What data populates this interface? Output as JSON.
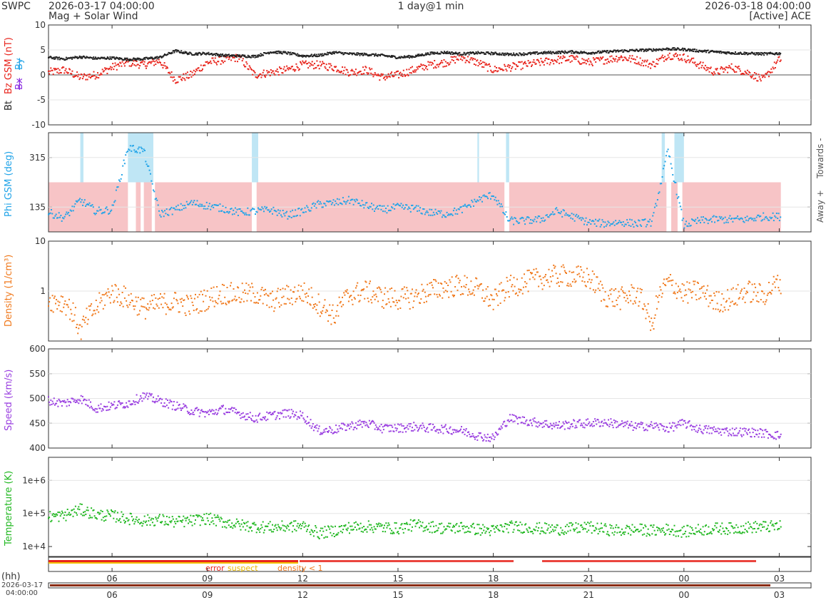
{
  "header": {
    "org": "SWPC",
    "start_time": "2026-03-17 04:00:00",
    "product": "Mag + Solar Wind",
    "span": "1 day@1 min",
    "end_time": "2026-03-18 04:00:00",
    "source": "[Active] ACE"
  },
  "colors": {
    "bt": "#222222",
    "bz": "#e8241c",
    "bx": "#8a2be2",
    "by": "#22a4e8",
    "phi": "#22a4e8",
    "density": "#f07a1e",
    "speed": "#9a3fe0",
    "temperature": "#22b822",
    "away_band": "#f7c4c6",
    "towards_band": "#bfe6f5",
    "flag_error": "#e8241c",
    "flag_suspect": "#f2c200",
    "flag_density": "#f07a1e"
  },
  "chart_data": [
    {
      "type": "scatter",
      "title": "Bz GSM / Bt",
      "ylabel_parts": [
        "Bt",
        "Bz GSM (nT)",
        "Bx",
        "By"
      ],
      "ylim": [
        -10,
        10
      ],
      "yticks": [
        "10",
        "5",
        "0",
        "-5",
        "-10"
      ],
      "x_hours": [
        4,
        28
      ],
      "series": [
        {
          "name": "Bt",
          "key": "bt",
          "x": [
            4.0,
            4.5,
            5.0,
            5.5,
            6.0,
            6.5,
            7.0,
            7.5,
            8.0,
            8.5,
            9.0,
            9.5,
            10.0,
            10.5,
            11.0,
            11.5,
            12.0,
            12.5,
            13.0,
            13.5,
            14.0,
            14.5,
            15.0,
            15.5,
            16.0,
            16.5,
            17.0,
            17.5,
            18.0,
            18.5,
            19.0,
            19.5,
            20.0,
            20.5,
            21.0,
            21.5,
            22.0,
            22.5,
            23.0,
            23.5,
            24.0,
            24.5,
            25.0,
            25.5,
            26.0,
            26.5,
            27.0
          ],
          "values": [
            3.5,
            3.2,
            3.6,
            3.3,
            3.4,
            3.1,
            3.2,
            3.5,
            4.8,
            4.2,
            4.3,
            3.9,
            3.8,
            3.7,
            4.6,
            4.4,
            3.8,
            3.9,
            4.5,
            4.2,
            4.1,
            3.9,
            3.5,
            3.7,
            4.3,
            4.5,
            4.2,
            4.4,
            4.3,
            4.1,
            4.2,
            4.4,
            4.5,
            4.6,
            4.4,
            4.6,
            4.8,
            4.9,
            5.0,
            5.2,
            5.1,
            4.8,
            4.6,
            4.4,
            4.3,
            4.2,
            4.3
          ]
        },
        {
          "name": "Bz GSM",
          "key": "bz",
          "x": [
            4.0,
            4.5,
            5.0,
            5.5,
            6.0,
            6.5,
            7.0,
            7.5,
            8.0,
            8.5,
            9.0,
            9.5,
            10.0,
            10.5,
            11.0,
            11.5,
            12.0,
            12.5,
            13.0,
            13.5,
            14.0,
            14.5,
            15.0,
            15.5,
            16.0,
            16.5,
            17.0,
            17.5,
            18.0,
            18.5,
            19.0,
            19.5,
            20.0,
            20.5,
            21.0,
            21.5,
            22.0,
            22.5,
            23.0,
            23.5,
            24.0,
            24.5,
            25.0,
            25.5,
            26.0,
            26.5,
            27.0
          ],
          "values": [
            0.5,
            1.0,
            -0.5,
            0.0,
            1.5,
            2.5,
            2.0,
            2.8,
            -1.0,
            0.0,
            2.5,
            3.0,
            3.5,
            0.0,
            0.5,
            1.0,
            2.0,
            2.0,
            1.5,
            0.5,
            1.0,
            -0.5,
            0.0,
            1.0,
            2.0,
            2.5,
            3.5,
            2.5,
            1.0,
            1.5,
            2.0,
            2.5,
            3.0,
            3.2,
            2.5,
            3.0,
            3.5,
            3.0,
            2.0,
            4.0,
            3.5,
            2.0,
            0.5,
            1.5,
            0.5,
            -1.0,
            3.0
          ]
        }
      ]
    },
    {
      "type": "scatter",
      "title": "Phi GSM",
      "ylabel": "Phi GSM (deg)",
      "ylim": [
        45,
        405
      ],
      "yticks": [
        "315",
        "135"
      ],
      "right_labels": [
        "Towards -",
        "Away +"
      ],
      "series": [
        {
          "name": "Phi GSM",
          "key": "phi",
          "x": [
            4.0,
            4.5,
            5.0,
            5.5,
            6.0,
            6.5,
            7.0,
            7.5,
            8.0,
            8.5,
            9.0,
            9.5,
            10.0,
            10.5,
            11.0,
            11.5,
            12.0,
            12.5,
            13.0,
            13.5,
            14.0,
            14.5,
            15.0,
            15.5,
            16.0,
            16.5,
            17.0,
            17.5,
            18.0,
            18.5,
            19.0,
            19.5,
            20.0,
            20.5,
            21.0,
            21.5,
            22.0,
            22.5,
            23.0,
            23.5,
            24.0,
            24.5,
            25.0,
            25.5,
            26.0,
            26.5,
            27.0
          ],
          "values": [
            115,
            95,
            160,
            120,
            125,
            350,
            340,
            110,
            125,
            150,
            140,
            130,
            115,
            120,
            125,
            105,
            120,
            145,
            150,
            160,
            140,
            125,
            135,
            130,
            115,
            110,
            125,
            160,
            180,
            85,
            85,
            90,
            120,
            100,
            80,
            75,
            80,
            75,
            80,
            340,
            70,
            85,
            90,
            90,
            90,
            100,
            100
          ]
        }
      ]
    },
    {
      "type": "scatter",
      "title": "Density",
      "ylabel": "Density (1/cm³)",
      "ylim": [
        0.1,
        10
      ],
      "yscale": "log",
      "yticks": [
        "10",
        "1"
      ],
      "series": [
        {
          "name": "Density",
          "key": "density",
          "x": [
            4.0,
            4.5,
            5.0,
            5.5,
            6.0,
            6.5,
            7.0,
            7.5,
            8.0,
            8.5,
            9.0,
            9.5,
            10.0,
            10.5,
            11.0,
            11.5,
            12.0,
            12.5,
            13.0,
            13.5,
            14.0,
            14.5,
            15.0,
            15.5,
            16.0,
            16.5,
            17.0,
            17.5,
            18.0,
            18.5,
            19.0,
            19.5,
            20.0,
            20.5,
            21.0,
            21.5,
            22.0,
            22.5,
            23.0,
            23.5,
            24.0,
            24.5,
            25.0,
            25.5,
            26.0,
            26.5,
            27.0
          ],
          "values": [
            0.65,
            0.6,
            0.15,
            0.45,
            0.95,
            0.7,
            0.45,
            0.55,
            0.6,
            0.5,
            0.7,
            0.9,
            0.85,
            0.9,
            0.6,
            0.8,
            0.95,
            0.55,
            0.3,
            0.85,
            1.0,
            0.75,
            0.7,
            0.75,
            1.0,
            1.2,
            1.3,
            1.1,
            0.6,
            1.2,
            1.5,
            1.8,
            2.0,
            2.0,
            1.8,
            0.8,
            0.7,
            0.9,
            0.15,
            1.5,
            0.9,
            1.0,
            0.6,
            0.7,
            1.0,
            0.8,
            1.5
          ]
        }
      ]
    },
    {
      "type": "scatter",
      "title": "Speed",
      "ylabel": "Speed (km/s)",
      "ylim": [
        400,
        600
      ],
      "yticks": [
        "600",
        "550",
        "500",
        "450",
        "400"
      ],
      "series": [
        {
          "name": "Speed",
          "key": "speed",
          "x": [
            4.0,
            4.5,
            5.0,
            5.5,
            6.0,
            6.5,
            7.0,
            7.5,
            8.0,
            8.5,
            9.0,
            9.5,
            10.0,
            10.5,
            11.0,
            11.5,
            12.0,
            12.5,
            13.0,
            13.5,
            14.0,
            14.5,
            15.0,
            15.5,
            16.0,
            16.5,
            17.0,
            17.5,
            18.0,
            18.5,
            19.0,
            19.5,
            20.0,
            20.5,
            21.0,
            21.5,
            22.0,
            22.5,
            23.0,
            23.5,
            24.0,
            24.5,
            25.0,
            25.5,
            26.0,
            26.5,
            27.0
          ],
          "values": [
            495,
            490,
            500,
            480,
            485,
            490,
            505,
            495,
            485,
            475,
            470,
            478,
            470,
            460,
            465,
            470,
            465,
            435,
            437,
            445,
            450,
            440,
            440,
            443,
            440,
            438,
            435,
            425,
            420,
            460,
            455,
            450,
            445,
            448,
            450,
            452,
            448,
            443,
            445,
            440,
            450,
            438,
            435,
            433,
            432,
            430,
            425
          ]
        }
      ]
    },
    {
      "type": "scatter",
      "title": "Temperature",
      "ylabel": "Temperature (K)",
      "ylim": [
        5000,
        5000000
      ],
      "yscale": "log",
      "yticks": [
        "1e+6",
        "1e+5",
        "1e+4"
      ],
      "series": [
        {
          "name": "Temperature",
          "key": "temperature",
          "x": [
            4.0,
            4.5,
            5.0,
            5.5,
            6.0,
            6.5,
            7.0,
            7.5,
            8.0,
            8.5,
            9.0,
            9.5,
            10.0,
            10.5,
            11.0,
            11.5,
            12.0,
            12.5,
            13.0,
            13.5,
            14.0,
            14.5,
            15.0,
            15.5,
            16.0,
            16.5,
            17.0,
            17.5,
            18.0,
            18.5,
            19.0,
            19.5,
            20.0,
            20.5,
            21.0,
            21.5,
            22.0,
            22.5,
            23.0,
            23.5,
            24.0,
            24.5,
            25.0,
            25.5,
            26.0,
            26.5,
            27.0
          ],
          "values": [
            80000,
            85000,
            130000,
            90000,
            85000,
            70000,
            60000,
            65000,
            55000,
            60000,
            70000,
            55000,
            45000,
            40000,
            38000,
            40000,
            42000,
            25000,
            30000,
            38000,
            40000,
            38000,
            35000,
            45000,
            40000,
            35000,
            38000,
            33000,
            30000,
            40000,
            38000,
            35000,
            33000,
            35000,
            38000,
            33000,
            30000,
            33000,
            30000,
            33000,
            28000,
            32000,
            35000,
            35000,
            38000,
            40000,
            40000
          ]
        }
      ]
    }
  ],
  "flags_legend": {
    "error": "error",
    "suspect": "suspect",
    "density": "density < 1"
  },
  "x_axis": {
    "unit_label": "(hh)",
    "tick_labels": [
      "06",
      "09",
      "12",
      "15",
      "18",
      "21",
      "00",
      "03"
    ],
    "tick_hours": [
      6,
      9,
      12,
      15,
      18,
      21,
      24,
      27
    ],
    "overview_date": "2026-03-17",
    "overview_time": "04:00:00"
  }
}
